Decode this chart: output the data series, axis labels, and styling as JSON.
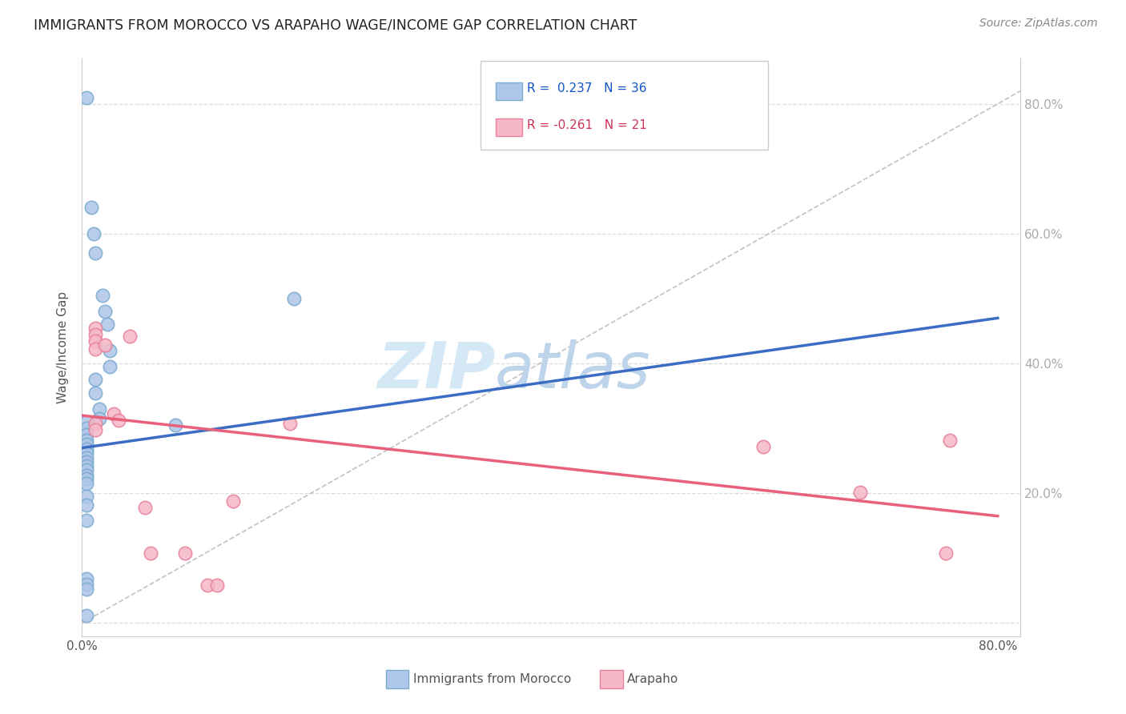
{
  "title": "IMMIGRANTS FROM MOROCCO VS ARAPAHO WAGE/INCOME GAP CORRELATION CHART",
  "source": "Source: ZipAtlas.com",
  "ylabel": "Wage/Income Gap",
  "xlim": [
    0.0,
    0.82
  ],
  "ylim": [
    -0.02,
    0.87
  ],
  "xticks": [
    0.0,
    0.1,
    0.2,
    0.3,
    0.4,
    0.5,
    0.6,
    0.7,
    0.8
  ],
  "xticklabels": [
    "0.0%",
    "",
    "",
    "",
    "",
    "",
    "",
    "",
    "80.0%"
  ],
  "yticks": [
    0.0,
    0.2,
    0.4,
    0.6,
    0.8
  ],
  "yticklabels": [
    "",
    "20.0%",
    "40.0%",
    "60.0%",
    "80.0%"
  ],
  "blue_color": "#AEC6E8",
  "pink_color": "#F5B8C8",
  "blue_edge": "#7AAAD0",
  "pink_edge": "#E8809A",
  "blue_line_color": "#3B6DC4",
  "pink_line_color": "#E8607A",
  "diagonal_color": "#BBBBBB",
  "blue_scatter": [
    [
      0.004,
      0.81
    ],
    [
      0.008,
      0.64
    ],
    [
      0.01,
      0.6
    ],
    [
      0.012,
      0.57
    ],
    [
      0.018,
      0.505
    ],
    [
      0.02,
      0.48
    ],
    [
      0.022,
      0.46
    ],
    [
      0.024,
      0.42
    ],
    [
      0.024,
      0.395
    ],
    [
      0.012,
      0.375
    ],
    [
      0.012,
      0.355
    ],
    [
      0.015,
      0.33
    ],
    [
      0.015,
      0.315
    ],
    [
      0.004,
      0.31
    ],
    [
      0.004,
      0.3
    ],
    [
      0.004,
      0.29
    ],
    [
      0.004,
      0.282
    ],
    [
      0.004,
      0.275
    ],
    [
      0.004,
      0.268
    ],
    [
      0.004,
      0.262
    ],
    [
      0.004,
      0.255
    ],
    [
      0.004,
      0.248
    ],
    [
      0.004,
      0.242
    ],
    [
      0.004,
      0.236
    ],
    [
      0.004,
      0.228
    ],
    [
      0.004,
      0.222
    ],
    [
      0.004,
      0.215
    ],
    [
      0.004,
      0.195
    ],
    [
      0.004,
      0.182
    ],
    [
      0.004,
      0.158
    ],
    [
      0.004,
      0.068
    ],
    [
      0.004,
      0.06
    ],
    [
      0.004,
      0.052
    ],
    [
      0.004,
      0.012
    ],
    [
      0.082,
      0.305
    ],
    [
      0.185,
      0.5
    ]
  ],
  "pink_scatter": [
    [
      0.012,
      0.455
    ],
    [
      0.012,
      0.445
    ],
    [
      0.012,
      0.435
    ],
    [
      0.012,
      0.422
    ],
    [
      0.012,
      0.308
    ],
    [
      0.012,
      0.298
    ],
    [
      0.02,
      0.428
    ],
    [
      0.028,
      0.322
    ],
    [
      0.032,
      0.312
    ],
    [
      0.042,
      0.442
    ],
    [
      0.055,
      0.178
    ],
    [
      0.06,
      0.108
    ],
    [
      0.09,
      0.108
    ],
    [
      0.11,
      0.058
    ],
    [
      0.118,
      0.058
    ],
    [
      0.132,
      0.188
    ],
    [
      0.182,
      0.308
    ],
    [
      0.595,
      0.272
    ],
    [
      0.68,
      0.202
    ],
    [
      0.755,
      0.108
    ],
    [
      0.758,
      0.282
    ]
  ],
  "blue_line_x": [
    0.0,
    0.8
  ],
  "blue_line_y": [
    0.27,
    0.47
  ],
  "pink_line_x": [
    0.0,
    0.8
  ],
  "pink_line_y": [
    0.32,
    0.165
  ]
}
